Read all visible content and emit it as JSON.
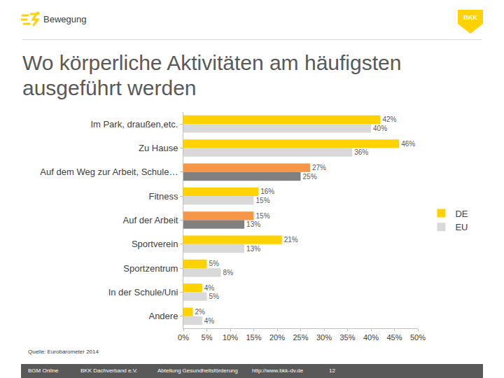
{
  "header": "Bewegung",
  "logo": "BKK",
  "source": "Quelle: Eurobarometer 2014",
  "footer": [
    "BGM Online",
    "BKK Dachverband e.V.",
    "Abteilung Gesundheitsförderung",
    "http://www.bkk-dv.de",
    "12"
  ],
  "chart_data": {
    "type": "bar",
    "orientation": "horizontal",
    "title": "Wo körperliche Aktivitäten am häufigsten ausgeführt werden",
    "categories": [
      "Im Park, draußen,etc.",
      "Zu Hause",
      "Auf dem Weg zur Arbeit, Schule…",
      "Fitness",
      "Auf der Arbeit",
      "Sportverein",
      "Sportzentrum",
      "In der Schule/Uni",
      "Andere"
    ],
    "series": [
      {
        "name": "DE",
        "color": "#ffd200",
        "colors": [
          "#ffd200",
          "#ffd200",
          "#f79646",
          "#ffd200",
          "#f79646",
          "#ffd200",
          "#ffd200",
          "#ffd200",
          "#ffd200"
        ],
        "values": [
          42,
          46,
          27,
          16,
          15,
          21,
          5,
          4,
          2
        ],
        "value_labels": [
          "42%",
          "46%",
          "27%",
          "16%",
          "15%",
          "21%",
          "5%",
          "4%",
          "2%"
        ]
      },
      {
        "name": "EU",
        "color": "#d9d9d9",
        "colors": [
          "#d9d9d9",
          "#d9d9d9",
          "#808080",
          "#d9d9d9",
          "#808080",
          "#d9d9d9",
          "#d9d9d9",
          "#d9d9d9",
          "#d9d9d9"
        ],
        "values": [
          40,
          36,
          25,
          15,
          13,
          13,
          8,
          5,
          4
        ],
        "value_labels": [
          "40%",
          "36%",
          "25%",
          "15%",
          "13%",
          "13%",
          "8%",
          "5%",
          "4%"
        ]
      }
    ],
    "xlim": [
      0,
      50
    ],
    "xticks": [
      {
        "value": 0,
        "label": "0%"
      },
      {
        "value": 5,
        "label": "5%"
      },
      {
        "value": 10,
        "label": "10%"
      },
      {
        "value": 15,
        "label": "15%"
      },
      {
        "value": 20,
        "label": "20%"
      },
      {
        "value": 25,
        "label": "25%"
      },
      {
        "value": 30,
        "label": "30%"
      },
      {
        "value": 35,
        "label": "35%"
      },
      {
        "value": 40,
        "label": "40%"
      },
      {
        "value": 45,
        "label": "45%"
      },
      {
        "value": 50,
        "label": "50%"
      }
    ],
    "grid": false,
    "legend": "right",
    "data_labels": true
  }
}
